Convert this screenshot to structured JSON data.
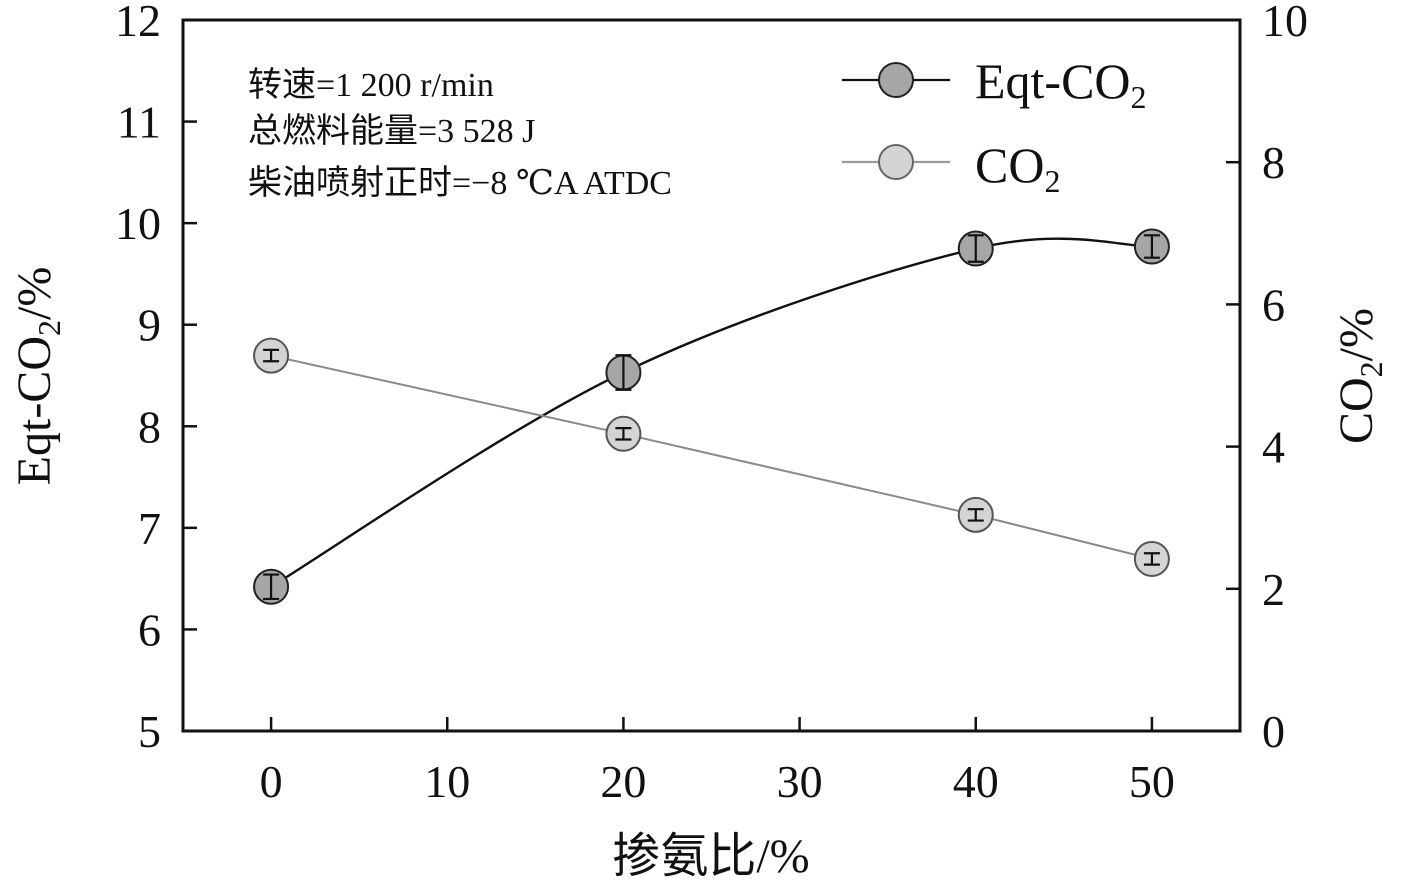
{
  "chart_data": {
    "type": "line",
    "xlabel": "掺氨比/%",
    "ylabel_left_main": "Eqt-CO",
    "ylabel_left_sub": "2",
    "ylabel_left_suffix": "/%",
    "ylabel_right_main": "CO",
    "ylabel_right_sub": "2",
    "ylabel_right_suffix": "/%",
    "xlim": [
      -5,
      55
    ],
    "ylim_left": [
      5,
      12
    ],
    "ylim_right": [
      0,
      10
    ],
    "x_ticks": [
      0,
      10,
      20,
      30,
      40,
      50
    ],
    "y_left_ticks": [
      5,
      6,
      7,
      8,
      9,
      10,
      11,
      12
    ],
    "y_right_ticks": [
      0,
      2,
      4,
      6,
      8,
      10
    ],
    "grid": false,
    "legend_position": "top-right",
    "annotations": [
      "转速=1 200 r/min",
      "总燃料能量=3 528 J",
      "柴油喷射正时=−8 ℃A ATDC"
    ],
    "series": [
      {
        "name_main": "Eqt-CO",
        "name_sub": "2",
        "axis": "left",
        "marker_color": "#a6a6a6",
        "line_color": "#111111",
        "x": [
          0,
          20,
          40,
          50
        ],
        "y": [
          6.42,
          8.53,
          9.75,
          9.77
        ],
        "err": [
          0.12,
          0.17,
          0.13,
          0.11
        ]
      },
      {
        "name_main": "CO",
        "name_sub": "2",
        "axis": "right",
        "marker_color": "#d4d4d4",
        "line_color": "#8a8a8a",
        "x": [
          0,
          20,
          40,
          50
        ],
        "y": [
          5.28,
          4.18,
          3.04,
          2.42
        ],
        "err": [
          0.08,
          0.08,
          0.08,
          0.08
        ]
      }
    ]
  }
}
